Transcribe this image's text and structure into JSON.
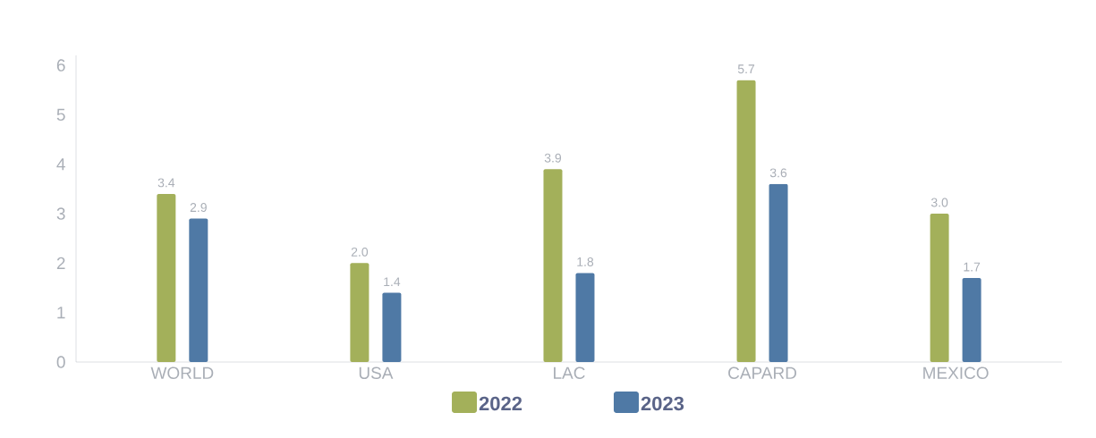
{
  "chart_data": {
    "type": "bar",
    "categories": [
      "WORLD",
      "USA",
      "LAC",
      "CAPARD",
      "MEXICO"
    ],
    "series": [
      {
        "name": "2022",
        "color": "#a3b05a",
        "values": [
          3.4,
          2.0,
          3.9,
          5.7,
          3.0
        ],
        "value_labels": [
          "3.4",
          "2.0",
          "3.9",
          "5.7",
          "3.0"
        ]
      },
      {
        "name": "2023",
        "color": "#4f79a5",
        "values": [
          2.9,
          1.4,
          1.8,
          3.6,
          1.7
        ],
        "value_labels": [
          "2.9",
          "1.4",
          "1.8",
          "3.6",
          "1.7"
        ]
      }
    ],
    "ylim": [
      0,
      6.2
    ],
    "yticks": [
      0,
      1,
      2,
      3,
      4,
      5,
      6
    ],
    "legend": "bottom",
    "grid": false
  }
}
